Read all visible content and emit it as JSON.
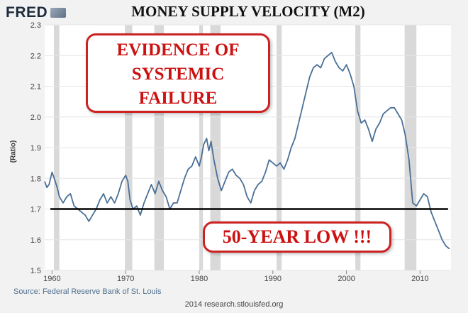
{
  "header": {
    "logo_text": "FRED",
    "logo_icon": "chart-trend-icon"
  },
  "footer": {
    "source": "Source: Federal Reserve Bank of St. Louis",
    "credit": "2014 research.stlouisfed.org"
  },
  "annotations": {
    "evidence_lines": [
      "EVIDENCE OF",
      "SYSTEMIC",
      "FAILURE"
    ],
    "low_label": "50-YEAR LOW !!!",
    "reference_level": 1.7
  },
  "colors": {
    "line": "#4a6f96",
    "recession": "#d9d9d9",
    "annotation": "#cc1111",
    "reference": "#000000",
    "plot_background": "#ffffff"
  },
  "chart_data": {
    "type": "line",
    "title": "MONEY SUPPLY VELOCITY (M2)",
    "ylabel": "(Ratio)",
    "xlabel": "",
    "xlim": [
      1959,
      2014.2
    ],
    "ylim": [
      1.5,
      2.3
    ],
    "xticks": [
      1960,
      1970,
      1980,
      1990,
      2000,
      2010
    ],
    "yticks": [
      1.5,
      1.6,
      1.7,
      1.8,
      1.9,
      2.0,
      2.1,
      2.2,
      2.3
    ],
    "grid": true,
    "recessions": [
      [
        1960.25,
        1961.0
      ],
      [
        1969.9,
        1970.9
      ],
      [
        1973.9,
        1975.2
      ],
      [
        1980.0,
        1980.5
      ],
      [
        1981.5,
        1982.9
      ],
      [
        1990.5,
        1991.2
      ],
      [
        2001.2,
        2001.9
      ],
      [
        2007.9,
        2009.5
      ]
    ],
    "series": [
      {
        "x": [
          1959.0,
          1959.3,
          1959.6,
          1960.0,
          1960.3,
          1960.7,
          1961.0,
          1961.5,
          1962.0,
          1962.5,
          1963.0,
          1963.5,
          1964.0,
          1964.5,
          1965.0,
          1965.5,
          1966.0,
          1966.5,
          1967.0,
          1967.5,
          1968.0,
          1968.5,
          1969.0,
          1969.5,
          1970.0,
          1970.3,
          1970.6,
          1971.0,
          1971.5,
          1972.0,
          1972.5,
          1973.0,
          1973.5,
          1974.0,
          1974.5,
          1975.0,
          1975.5,
          1976.0,
          1976.5,
          1977.0,
          1977.5,
          1978.0,
          1978.5,
          1979.0,
          1979.5,
          1980.0,
          1980.3,
          1980.6,
          1981.0,
          1981.3,
          1981.6,
          1982.0,
          1982.5,
          1983.0,
          1983.5,
          1984.0,
          1984.5,
          1985.0,
          1985.5,
          1986.0,
          1986.5,
          1987.0,
          1987.5,
          1988.0,
          1988.5,
          1989.0,
          1989.5,
          1990.0,
          1990.5,
          1991.0,
          1991.5,
          1992.0,
          1992.5,
          1993.0,
          1993.5,
          1994.0,
          1994.5,
          1995.0,
          1995.5,
          1996.0,
          1996.5,
          1997.0,
          1997.5,
          1998.0,
          1998.5,
          1999.0,
          1999.5,
          2000.0,
          2000.5,
          2001.0,
          2001.5,
          2002.0,
          2002.5,
          2003.0,
          2003.5,
          2004.0,
          2004.5,
          2005.0,
          2005.5,
          2006.0,
          2006.5,
          2007.0,
          2007.5,
          2008.0,
          2008.5,
          2009.0,
          2009.5,
          2010.0,
          2010.5,
          2011.0,
          2011.5,
          2012.0,
          2012.5,
          2013.0,
          2013.5,
          2014.0
        ],
        "y": [
          1.79,
          1.77,
          1.78,
          1.82,
          1.8,
          1.77,
          1.74,
          1.72,
          1.74,
          1.75,
          1.71,
          1.7,
          1.69,
          1.68,
          1.66,
          1.68,
          1.7,
          1.73,
          1.75,
          1.72,
          1.74,
          1.72,
          1.75,
          1.79,
          1.81,
          1.79,
          1.73,
          1.7,
          1.71,
          1.68,
          1.72,
          1.75,
          1.78,
          1.75,
          1.79,
          1.76,
          1.74,
          1.7,
          1.72,
          1.72,
          1.76,
          1.8,
          1.83,
          1.84,
          1.87,
          1.84,
          1.87,
          1.91,
          1.93,
          1.89,
          1.92,
          1.86,
          1.8,
          1.76,
          1.79,
          1.82,
          1.83,
          1.81,
          1.8,
          1.78,
          1.74,
          1.72,
          1.76,
          1.78,
          1.79,
          1.82,
          1.86,
          1.85,
          1.84,
          1.85,
          1.83,
          1.86,
          1.9,
          1.93,
          1.98,
          2.03,
          2.08,
          2.13,
          2.16,
          2.17,
          2.16,
          2.19,
          2.2,
          2.21,
          2.18,
          2.16,
          2.15,
          2.17,
          2.14,
          2.1,
          2.02,
          1.98,
          1.99,
          1.96,
          1.92,
          1.96,
          1.98,
          2.01,
          2.02,
          2.03,
          2.03,
          2.01,
          1.99,
          1.94,
          1.86,
          1.72,
          1.71,
          1.73,
          1.75,
          1.74,
          1.69,
          1.66,
          1.63,
          1.6,
          1.58,
          1.57
        ]
      }
    ]
  }
}
